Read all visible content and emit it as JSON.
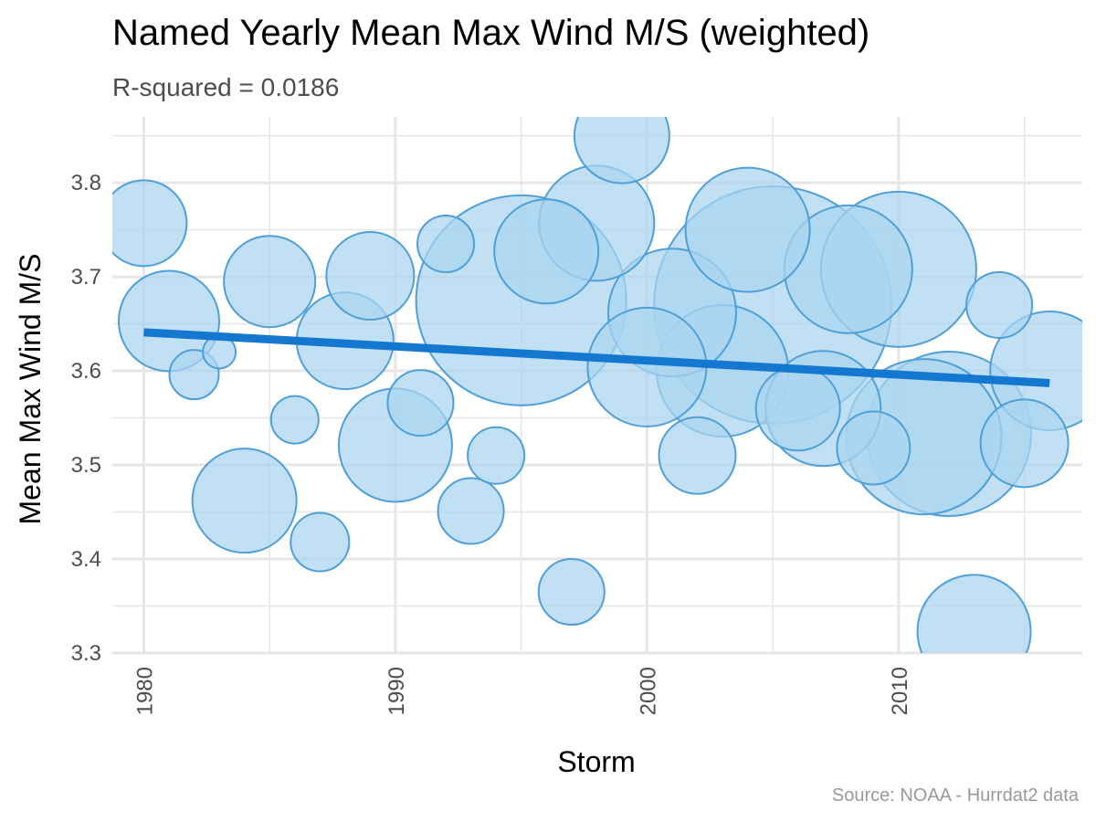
{
  "chart_data": {
    "type": "scatter",
    "title": "Named Yearly Mean Max Wind M/S (weighted)",
    "subtitle": "R-squared =  0.0186",
    "caption": "Source: NOAA - Hurrdat2 data",
    "xlabel": "Storm",
    "ylabel": "Mean Max Wind M/S",
    "xlim": [
      1978.75,
      2017.3
    ],
    "ylim": [
      3.3,
      3.87
    ],
    "x_ticks": [
      1980,
      1990,
      2000,
      2010
    ],
    "y_ticks": [
      3.3,
      3.4,
      3.5,
      3.6,
      3.7,
      3.8
    ],
    "x_minor_ticks": [
      1985,
      1995,
      2005,
      2015
    ],
    "y_minor_ticks": [
      3.35,
      3.45,
      3.55,
      3.65,
      3.75,
      3.85
    ],
    "grid": true,
    "bubble_size_unit": "relative weight (radius scale)",
    "points": [
      {
        "x": 1980,
        "y": 3.757,
        "size": 47
      },
      {
        "x": 1981,
        "y": 3.653,
        "size": 55
      },
      {
        "x": 1982,
        "y": 3.596,
        "size": 27
      },
      {
        "x": 1983,
        "y": 3.62,
        "size": 18
      },
      {
        "x": 1984,
        "y": 3.462,
        "size": 57
      },
      {
        "x": 1985,
        "y": 3.695,
        "size": 50
      },
      {
        "x": 1986,
        "y": 3.548,
        "size": 26
      },
      {
        "x": 1987,
        "y": 3.418,
        "size": 32
      },
      {
        "x": 1988,
        "y": 3.632,
        "size": 53
      },
      {
        "x": 1989,
        "y": 3.701,
        "size": 48
      },
      {
        "x": 1990,
        "y": 3.521,
        "size": 62
      },
      {
        "x": 1991,
        "y": 3.566,
        "size": 36
      },
      {
        "x": 1992,
        "y": 3.735,
        "size": 31
      },
      {
        "x": 1993,
        "y": 3.451,
        "size": 36
      },
      {
        "x": 1994,
        "y": 3.51,
        "size": 31
      },
      {
        "x": 1995,
        "y": 3.675,
        "size": 115
      },
      {
        "x": 1996,
        "y": 3.727,
        "size": 57
      },
      {
        "x": 1997,
        "y": 3.365,
        "size": 36
      },
      {
        "x": 1998,
        "y": 3.757,
        "size": 63
      },
      {
        "x": 1999,
        "y": 3.85,
        "size": 52
      },
      {
        "x": 2000,
        "y": 3.604,
        "size": 65
      },
      {
        "x": 2001,
        "y": 3.662,
        "size": 70
      },
      {
        "x": 2002,
        "y": 3.51,
        "size": 42
      },
      {
        "x": 2003,
        "y": 3.6,
        "size": 72
      },
      {
        "x": 2004,
        "y": 3.75,
        "size": 68
      },
      {
        "x": 2005,
        "y": 3.67,
        "size": 130
      },
      {
        "x": 2006,
        "y": 3.56,
        "size": 46
      },
      {
        "x": 2007,
        "y": 3.56,
        "size": 63
      },
      {
        "x": 2008,
        "y": 3.708,
        "size": 70
      },
      {
        "x": 2009,
        "y": 3.518,
        "size": 40
      },
      {
        "x": 2010,
        "y": 3.708,
        "size": 85
      },
      {
        "x": 2011,
        "y": 3.53,
        "size": 85
      },
      {
        "x": 2012,
        "y": 3.533,
        "size": 90
      },
      {
        "x": 2013,
        "y": 3.323,
        "size": 62
      },
      {
        "x": 2014,
        "y": 3.67,
        "size": 36
      },
      {
        "x": 2015,
        "y": 3.523,
        "size": 48
      },
      {
        "x": 2016,
        "y": 3.6,
        "size": 65
      }
    ],
    "trend_line": {
      "x": [
        1980,
        2016
      ],
      "y": [
        3.641,
        3.587
      ]
    },
    "colors": {
      "bubble_fill": "#aad4f0",
      "bubble_stroke": "#4f9fd9",
      "trend_line": "#1478d0",
      "grid": "#e6e6e6",
      "axis_text": "#4d4d4d",
      "caption_text": "#999999"
    }
  }
}
